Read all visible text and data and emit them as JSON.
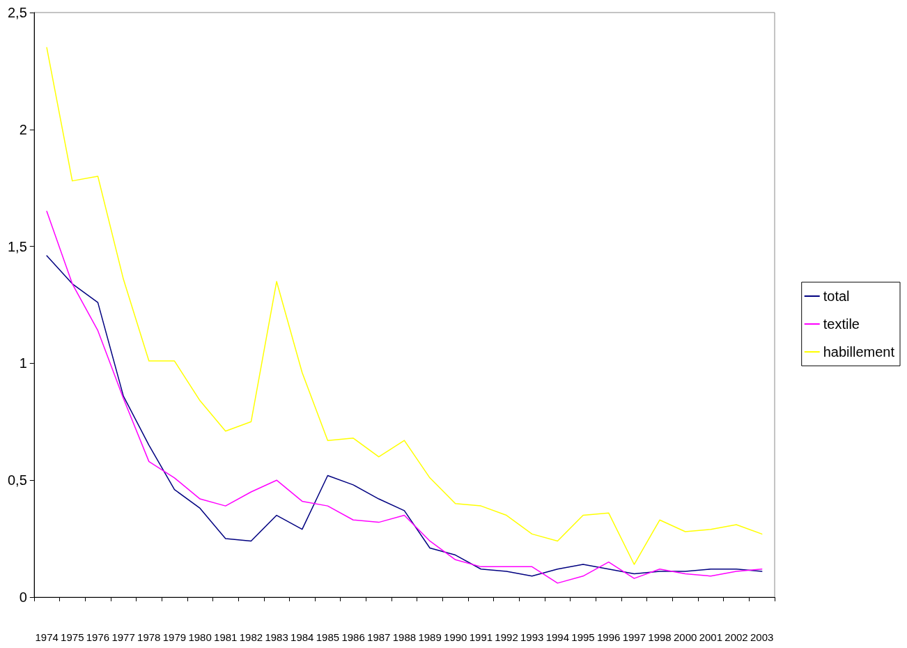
{
  "chart_data": {
    "type": "line",
    "categories": [
      "1974",
      "1975",
      "1976",
      "1977",
      "1978",
      "1979",
      "1980",
      "1981",
      "1982",
      "1983",
      "1984",
      "1985",
      "1986",
      "1987",
      "1988",
      "1989",
      "1990",
      "1991",
      "1992",
      "1993",
      "1994",
      "1995",
      "1996",
      "1997",
      "1998",
      "2000",
      "2001",
      "2002",
      "2003"
    ],
    "series": [
      {
        "name": "total",
        "color": "#000080",
        "values": [
          1.46,
          1.34,
          1.26,
          0.86,
          0.65,
          0.46,
          0.38,
          0.25,
          0.24,
          0.35,
          0.29,
          0.52,
          0.48,
          0.42,
          0.37,
          0.21,
          0.18,
          0.12,
          0.11,
          0.09,
          0.12,
          0.14,
          0.12,
          0.1,
          0.11,
          0.11,
          0.12,
          0.12,
          0.11
        ]
      },
      {
        "name": "textile",
        "color": "#ff00ff",
        "values": [
          1.65,
          1.34,
          1.14,
          0.85,
          0.58,
          0.51,
          0.42,
          0.39,
          0.45,
          0.5,
          0.41,
          0.39,
          0.33,
          0.32,
          0.35,
          0.24,
          0.16,
          0.13,
          0.13,
          0.13,
          0.06,
          0.09,
          0.15,
          0.08,
          0.12,
          0.1,
          0.09,
          0.11,
          0.12
        ]
      },
      {
        "name": "habillement",
        "color": "#ffff00",
        "values": [
          2.35,
          1.78,
          1.8,
          1.36,
          1.01,
          1.01,
          0.84,
          0.71,
          0.75,
          1.35,
          0.96,
          0.67,
          0.68,
          0.6,
          0.67,
          0.51,
          0.4,
          0.39,
          0.35,
          0.27,
          0.24,
          0.35,
          0.36,
          0.14,
          0.33,
          0.28,
          0.29,
          0.31,
          0.27
        ]
      }
    ],
    "ylim": [
      0,
      2.5
    ],
    "yticks": [
      0,
      {
        "value": 0.5,
        "label": "0,5"
      },
      1,
      {
        "value": 1.5,
        "label": "1,5"
      },
      2,
      {
        "value": 2.5,
        "label": "2,5"
      }
    ],
    "grid": false,
    "legend": "right",
    "marker": "none",
    "line_style": "solid"
  }
}
